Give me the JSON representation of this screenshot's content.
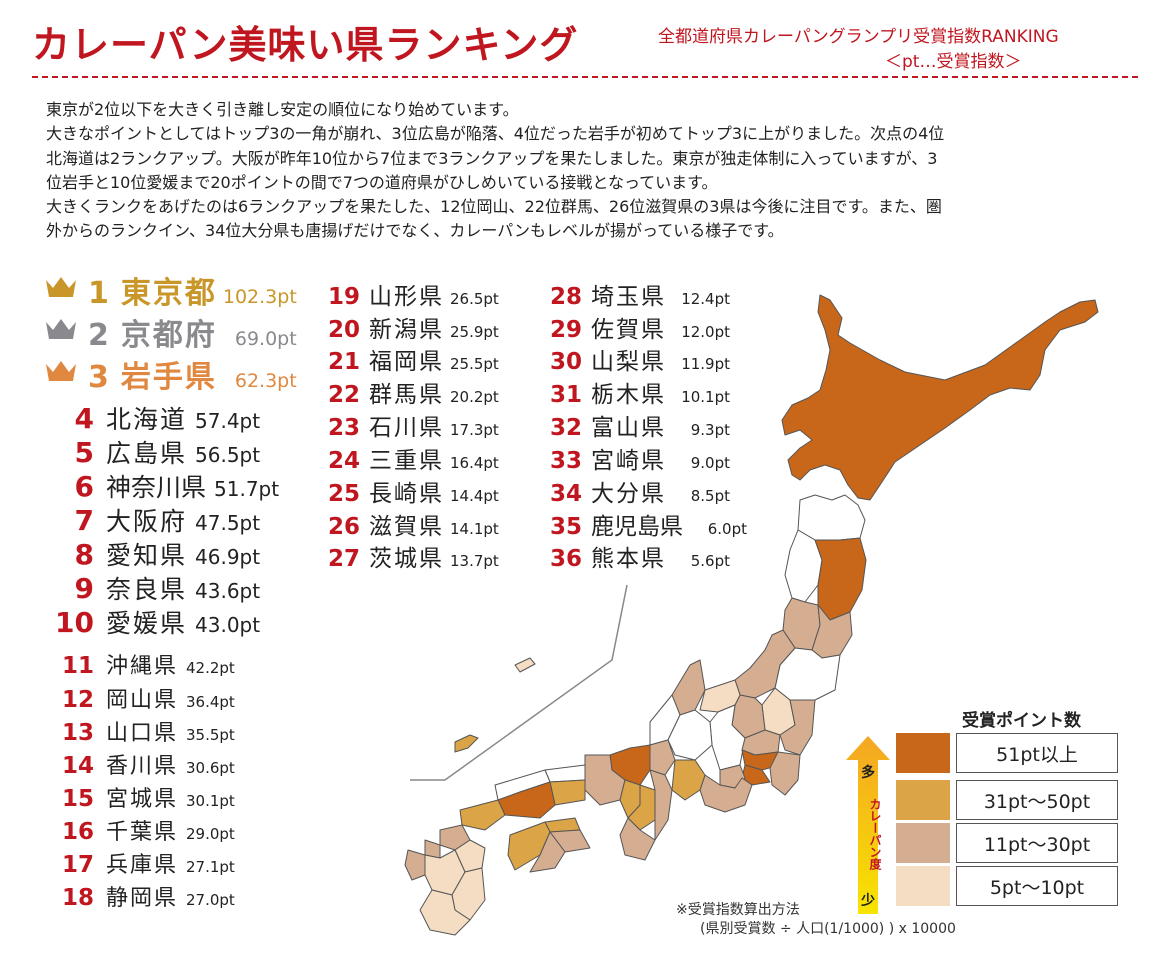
{
  "header": {
    "title": "カレーパン美味い県ランキング",
    "subtitle1": "全都道府県カレーパングランプリ受賞指数RANKING",
    "subtitle2": "＜pt…受賞指数＞"
  },
  "description": [
    "東京が2位以下を大きく引き離し安定の順位になり始めています。",
    "大きなポイントとしてはトップ3の一角が崩れ、3位広島が陥落、4位だった岩手が初めてトップ3に上がりました。次点の4位",
    "北海道は2ランクアップ。大阪が昨年10位から7位まで3ランクアップを果たしました。東京が独走体制に入っていますが、3",
    "位岩手と10位愛媛まで20ポイントの間で7つの道府県がひしめいている接戦となっています。",
    "大きくランクをあげたのは6ランクアップを果たした、12位岡山、22位群馬、26位滋賀県の3県は今後に注目です。また、圏",
    "外からのランクイン、34位大分県も唐揚げだけでなく、カレーパンもレベルが揚がっている様子です。"
  ],
  "top3": [
    {
      "rank": "1",
      "name": "東京都",
      "points": "102.3pt",
      "color": "#c9962a"
    },
    {
      "rank": "2",
      "name": "京都府",
      "points": "69.0pt",
      "color": "#8a8a8e"
    },
    {
      "rank": "3",
      "name": "岩手県",
      "points": "62.3pt",
      "color": "#e08840"
    }
  ],
  "ranking_col1": [
    {
      "rank": "4",
      "name": "北海道",
      "points": "57.4pt"
    },
    {
      "rank": "5",
      "name": "広島県",
      "points": "56.5pt"
    },
    {
      "rank": "6",
      "name": "神奈川県",
      "points": "51.7pt"
    },
    {
      "rank": "7",
      "name": "大阪府",
      "points": "47.5pt"
    },
    {
      "rank": "8",
      "name": "愛知県",
      "points": "46.9pt"
    },
    {
      "rank": "9",
      "name": "奈良県",
      "points": "43.6pt"
    },
    {
      "rank": "10",
      "name": "愛媛県",
      "points": "43.0pt"
    },
    {
      "rank": "11",
      "name": "沖縄県",
      "points": "42.2pt"
    },
    {
      "rank": "12",
      "name": "岡山県",
      "points": "36.4pt"
    },
    {
      "rank": "13",
      "name": "山口県",
      "points": "35.5pt"
    },
    {
      "rank": "14",
      "name": "香川県",
      "points": "30.6pt"
    },
    {
      "rank": "15",
      "name": "宮城県",
      "points": "30.1pt"
    },
    {
      "rank": "16",
      "name": "千葉県",
      "points": "29.0pt"
    },
    {
      "rank": "17",
      "name": "兵庫県",
      "points": "27.1pt"
    },
    {
      "rank": "18",
      "name": "静岡県",
      "points": "27.0pt"
    }
  ],
  "ranking_col2": [
    {
      "rank": "19",
      "name": "山形県",
      "points": "26.5pt"
    },
    {
      "rank": "20",
      "name": "新潟県",
      "points": "25.9pt"
    },
    {
      "rank": "21",
      "name": "福岡県",
      "points": "25.5pt"
    },
    {
      "rank": "22",
      "name": "群馬県",
      "points": "20.2pt"
    },
    {
      "rank": "23",
      "name": "石川県",
      "points": "17.3pt"
    },
    {
      "rank": "24",
      "name": "三重県",
      "points": "16.4pt"
    },
    {
      "rank": "25",
      "name": "長崎県",
      "points": "14.4pt"
    },
    {
      "rank": "26",
      "name": "滋賀県",
      "points": "14.1pt"
    },
    {
      "rank": "27",
      "name": "茨城県",
      "points": "13.7pt"
    }
  ],
  "ranking_col3": [
    {
      "rank": "28",
      "name": "埼玉県",
      "points": "12.4pt"
    },
    {
      "rank": "29",
      "name": "佐賀県",
      "points": "12.0pt"
    },
    {
      "rank": "30",
      "name": "山梨県",
      "points": "11.9pt"
    },
    {
      "rank": "31",
      "name": "栃木県",
      "points": "10.1pt"
    },
    {
      "rank": "32",
      "name": "富山県",
      "points": "9.3pt"
    },
    {
      "rank": "33",
      "name": "宮崎県",
      "points": "9.0pt"
    },
    {
      "rank": "34",
      "name": "大分県",
      "points": "8.5pt"
    },
    {
      "rank": "35",
      "name": "鹿児島県",
      "points": "6.0pt"
    },
    {
      "rank": "36",
      "name": "熊本県",
      "points": "5.6pt"
    }
  ],
  "legend": {
    "title": "受賞ポイント数",
    "arrow_top": "多",
    "arrow_mid": "カレーパン度",
    "arrow_bottom": "少",
    "items": [
      {
        "label": "51pt以上",
        "color": "#c8671a"
      },
      {
        "label": "31pt〜50pt",
        "color": "#dba447"
      },
      {
        "label": "11pt〜30pt",
        "color": "#d5ae92"
      },
      {
        "label": "5pt〜10pt",
        "color": "#f5ddc4"
      }
    ]
  },
  "footnote": {
    "line1": "※受賞指数算出方法",
    "line2": "(県別受賞数 ÷ 人口(1/1000) ) x 10000"
  },
  "map_colors": {
    "tier1": "#c8671a",
    "tier2": "#dba447",
    "tier3": "#d5ae92",
    "tier4": "#f5ddc4",
    "none": "#ffffff",
    "stroke": "#555555"
  }
}
